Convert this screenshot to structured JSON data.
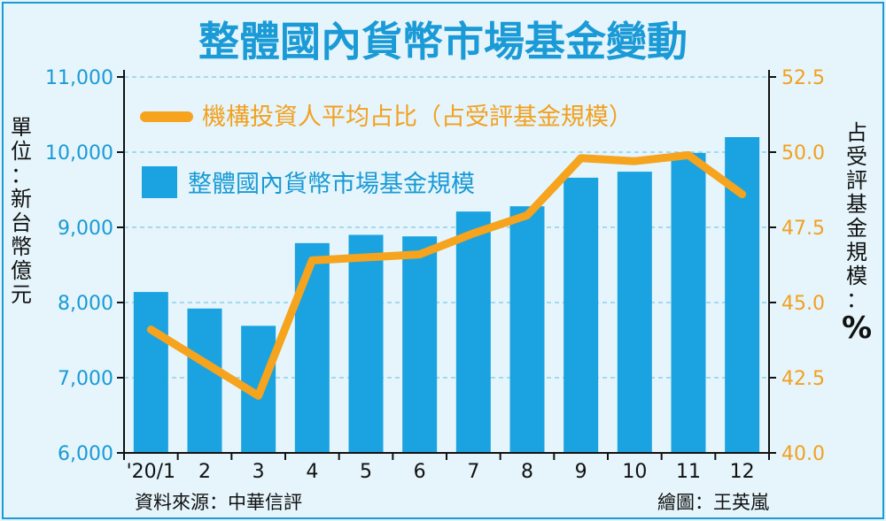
{
  "chart_data": {
    "type": "bar",
    "title": "整體國內貨幣市場基金變動",
    "categories": [
      "'20/1",
      "2",
      "3",
      "4",
      "5",
      "6",
      "7",
      "8",
      "9",
      "10",
      "11",
      "12"
    ],
    "series": [
      {
        "name": "整體國內貨幣市場基金規模",
        "type": "bar",
        "axis": "left",
        "values": [
          8140,
          7920,
          7690,
          8790,
          8900,
          8880,
          9210,
          9280,
          9660,
          9740,
          9990,
          10200
        ],
        "color": "#1aa3e0"
      },
      {
        "name": "機構投資人平均占比（占受評基金規模）",
        "type": "line",
        "axis": "right",
        "values": [
          44.1,
          43.0,
          41.9,
          46.4,
          46.5,
          46.6,
          47.3,
          47.9,
          49.8,
          49.7,
          49.9,
          48.6
        ],
        "color": "#f6a31e"
      }
    ],
    "y_left": {
      "label": "單位：新台幣億元",
      "min": 6000,
      "max": 11000,
      "ticks": [
        "6,000",
        "7,000",
        "8,000",
        "9,000",
        "10,000",
        "11,000"
      ]
    },
    "y_right": {
      "label": "占受評基金規模：%",
      "min": 40.0,
      "max": 52.5,
      "ticks": [
        "40.0",
        "42.5",
        "45.0",
        "47.5",
        "50.0",
        "52.5"
      ]
    },
    "grid": true,
    "legend_position": "top-left",
    "source": "資料來源：中華信評",
    "credit": "繪圖：王英嵐"
  }
}
